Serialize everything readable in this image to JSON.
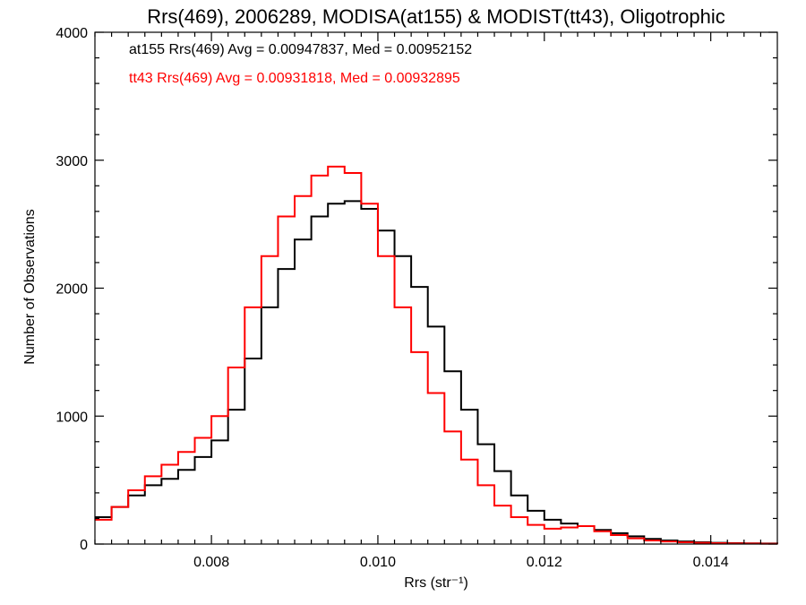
{
  "chart_data": {
    "type": "line",
    "title": "Rrs(469), 2006289, MODISA(at155) & MODIST(tt43), Oligotrophic",
    "xlabel": "Rrs (str⁻¹)",
    "ylabel": "Number of Observations",
    "xlim": [
      0.0066,
      0.0148
    ],
    "ylim": [
      0,
      4000
    ],
    "x_ticks": [
      0.008,
      0.01,
      0.012,
      0.014
    ],
    "x_tick_labels": [
      "0.008",
      "0.010",
      "0.012",
      "0.014"
    ],
    "y_ticks": [
      0,
      1000,
      2000,
      3000,
      4000
    ],
    "y_tick_labels": [
      "0",
      "1000",
      "2000",
      "3000",
      "4000"
    ],
    "grid": false,
    "legend_placement": "top-left",
    "annotations": [
      {
        "text": "at155 Rrs(469) Avg = 0.00947837, Med = 0.00952152",
        "color": "#000000"
      },
      {
        "text": "tt43 Rrs(469) Avg = 0.00931818, Med = 0.00932895",
        "color": "#ff0000"
      }
    ],
    "series": [
      {
        "color": "#000000",
        "x": [
          0.0066,
          0.0068,
          0.007,
          0.0072,
          0.0074,
          0.0076,
          0.0078,
          0.008,
          0.0082,
          0.0084,
          0.0086,
          0.0088,
          0.009,
          0.0092,
          0.0094,
          0.0096,
          0.0098,
          0.01,
          0.0102,
          0.0104,
          0.0106,
          0.0108,
          0.011,
          0.0112,
          0.0114,
          0.0116,
          0.0118,
          0.012,
          0.0122,
          0.0124,
          0.0126,
          0.0128,
          0.013,
          0.0132,
          0.0134,
          0.0136,
          0.0138,
          0.014,
          0.0142,
          0.0144,
          0.0146,
          0.0148
        ],
        "y": [
          210,
          290,
          380,
          460,
          510,
          580,
          680,
          810,
          1050,
          1450,
          1850,
          2150,
          2380,
          2560,
          2660,
          2680,
          2620,
          2450,
          2250,
          2010,
          1700,
          1350,
          1050,
          780,
          570,
          380,
          260,
          190,
          160,
          140,
          110,
          85,
          60,
          40,
          28,
          20,
          14,
          10,
          7,
          5,
          4,
          3
        ]
      },
      {
        "color": "#ff0000",
        "x": [
          0.0066,
          0.0068,
          0.007,
          0.0072,
          0.0074,
          0.0076,
          0.0078,
          0.008,
          0.0082,
          0.0084,
          0.0086,
          0.0088,
          0.009,
          0.0092,
          0.0094,
          0.0096,
          0.0098,
          0.01,
          0.0102,
          0.0104,
          0.0106,
          0.0108,
          0.011,
          0.0112,
          0.0114,
          0.0116,
          0.0118,
          0.012,
          0.0122,
          0.0124,
          0.0126,
          0.0128,
          0.013,
          0.0132,
          0.0134,
          0.0136,
          0.0138,
          0.014,
          0.0142,
          0.0144,
          0.0146,
          0.0148
        ],
        "y": [
          190,
          290,
          420,
          530,
          620,
          720,
          830,
          1000,
          1380,
          1850,
          2250,
          2560,
          2720,
          2880,
          2950,
          2900,
          2660,
          2250,
          1850,
          1500,
          1180,
          880,
          660,
          460,
          300,
          210,
          150,
          120,
          130,
          140,
          100,
          70,
          45,
          28,
          20,
          14,
          10,
          7,
          5,
          4,
          3,
          2
        ]
      }
    ]
  }
}
